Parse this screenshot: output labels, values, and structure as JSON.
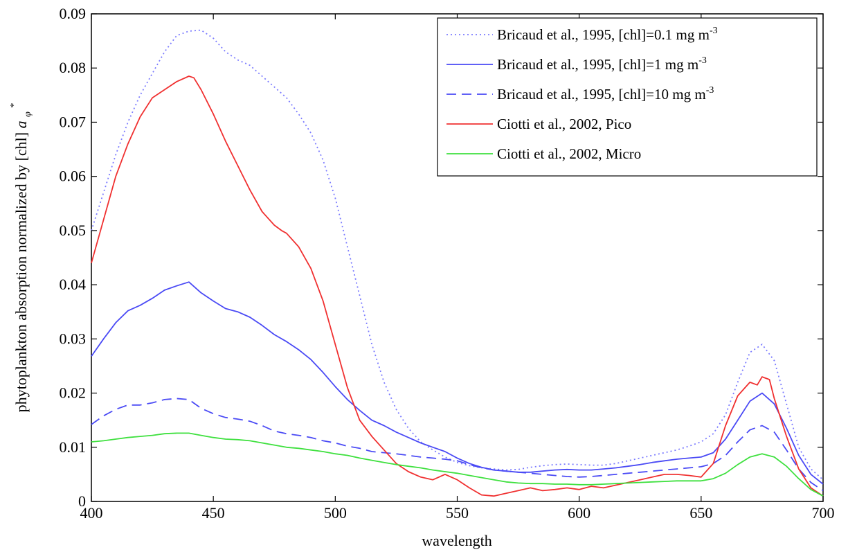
{
  "chart_data": {
    "type": "line",
    "xlabel": "wavelength",
    "ylabel": "phytoplankton absorption normalized by [chl]",
    "ylabel_symbol": "a",
    "ylabel_subscript": "φ",
    "ylabel_superscript": "*",
    "xlim": [
      400,
      700
    ],
    "ylim": [
      0,
      0.09
    ],
    "xticks": [
      400,
      450,
      500,
      550,
      600,
      650,
      700
    ],
    "yticks": [
      0,
      0.01,
      0.02,
      0.03,
      0.04,
      0.05,
      0.06,
      0.07,
      0.08,
      0.09
    ],
    "xtick_labels": [
      "400",
      "450",
      "500",
      "550",
      "600",
      "650",
      "700"
    ],
    "ytick_labels": [
      "0",
      "0.01",
      "0.02",
      "0.03",
      "0.04",
      "0.05",
      "0.06",
      "0.07",
      "0.08",
      "0.09"
    ],
    "grid": false,
    "legend_position": "top-right",
    "series": [
      {
        "name": "Bricaud et al., 1995, [chl]=0.1 mg m",
        "name_superscript": "-3",
        "color": "#7b7bff",
        "style": "dotted",
        "x": [
          400,
          405,
          410,
          415,
          420,
          425,
          430,
          435,
          440,
          445,
          450,
          455,
          460,
          465,
          470,
          475,
          480,
          485,
          490,
          495,
          500,
          505,
          510,
          515,
          520,
          525,
          530,
          535,
          540,
          545,
          550,
          555,
          560,
          565,
          570,
          575,
          580,
          585,
          590,
          595,
          600,
          605,
          610,
          615,
          620,
          625,
          630,
          635,
          640,
          645,
          650,
          655,
          660,
          665,
          670,
          675,
          680,
          685,
          690,
          695,
          700
        ],
        "y": [
          0.05,
          0.057,
          0.064,
          0.07,
          0.075,
          0.079,
          0.083,
          0.086,
          0.0868,
          0.087,
          0.0855,
          0.083,
          0.0815,
          0.0805,
          0.0785,
          0.0765,
          0.0745,
          0.0715,
          0.068,
          0.063,
          0.056,
          0.047,
          0.038,
          0.029,
          0.022,
          0.017,
          0.0135,
          0.011,
          0.0095,
          0.0082,
          0.0072,
          0.0066,
          0.0062,
          0.006,
          0.0058,
          0.0059,
          0.0063,
          0.0066,
          0.0068,
          0.0069,
          0.0068,
          0.0067,
          0.0067,
          0.007,
          0.0075,
          0.008,
          0.0085,
          0.009,
          0.0095,
          0.0102,
          0.011,
          0.0125,
          0.016,
          0.022,
          0.0275,
          0.029,
          0.026,
          0.018,
          0.01,
          0.006,
          0.004
        ]
      },
      {
        "name": "Bricaud et al., 1995, [chl]=1 mg m",
        "name_superscript": "-3",
        "color": "#4a4af5",
        "style": "solid",
        "x": [
          400,
          405,
          410,
          415,
          420,
          425,
          430,
          435,
          440,
          445,
          450,
          455,
          460,
          465,
          470,
          475,
          480,
          485,
          490,
          495,
          500,
          505,
          510,
          515,
          520,
          525,
          530,
          535,
          540,
          545,
          550,
          555,
          560,
          565,
          570,
          575,
          580,
          585,
          590,
          595,
          600,
          605,
          610,
          615,
          620,
          625,
          630,
          635,
          640,
          645,
          650,
          655,
          660,
          665,
          670,
          675,
          680,
          685,
          690,
          695,
          700
        ],
        "y": [
          0.0268,
          0.03,
          0.033,
          0.0352,
          0.0362,
          0.0375,
          0.039,
          0.0398,
          0.0405,
          0.0385,
          0.037,
          0.0356,
          0.035,
          0.034,
          0.0325,
          0.0308,
          0.0295,
          0.028,
          0.0262,
          0.0238,
          0.0212,
          0.0188,
          0.0168,
          0.015,
          0.014,
          0.0128,
          0.0118,
          0.0108,
          0.01,
          0.0092,
          0.008,
          0.007,
          0.0063,
          0.0058,
          0.0056,
          0.0054,
          0.0054,
          0.0056,
          0.0058,
          0.0059,
          0.0058,
          0.0058,
          0.006,
          0.0062,
          0.0065,
          0.0068,
          0.0072,
          0.0075,
          0.0078,
          0.008,
          0.0082,
          0.009,
          0.0115,
          0.015,
          0.0185,
          0.02,
          0.018,
          0.0135,
          0.0085,
          0.005,
          0.0032
        ]
      },
      {
        "name": "Bricaud et al., 1995, [chl]=10 mg m",
        "name_superscript": "-3",
        "color": "#4a4af5",
        "style": "dashed",
        "x": [
          400,
          405,
          410,
          415,
          420,
          425,
          430,
          435,
          440,
          445,
          450,
          455,
          460,
          465,
          470,
          475,
          480,
          485,
          490,
          495,
          500,
          505,
          510,
          515,
          520,
          525,
          530,
          535,
          540,
          545,
          550,
          555,
          560,
          565,
          570,
          575,
          580,
          585,
          590,
          595,
          600,
          605,
          610,
          615,
          620,
          625,
          630,
          635,
          640,
          645,
          650,
          655,
          660,
          665,
          670,
          675,
          680,
          685,
          690,
          695,
          700
        ],
        "y": [
          0.0142,
          0.0158,
          0.017,
          0.0178,
          0.0178,
          0.0182,
          0.0188,
          0.019,
          0.0188,
          0.0172,
          0.0162,
          0.0155,
          0.0152,
          0.0148,
          0.014,
          0.013,
          0.0125,
          0.0122,
          0.0118,
          0.0112,
          0.0108,
          0.0102,
          0.0098,
          0.0092,
          0.009,
          0.0088,
          0.0085,
          0.0082,
          0.008,
          0.0078,
          0.0075,
          0.0068,
          0.0062,
          0.0058,
          0.0056,
          0.0054,
          0.0052,
          0.005,
          0.0048,
          0.0046,
          0.0045,
          0.0046,
          0.0048,
          0.005,
          0.0052,
          0.0054,
          0.0056,
          0.0058,
          0.006,
          0.0062,
          0.0064,
          0.007,
          0.0085,
          0.011,
          0.0132,
          0.014,
          0.0128,
          0.0095,
          0.006,
          0.0035,
          0.002
        ]
      },
      {
        "name": "Ciotti et al., 2002, Pico",
        "color": "#f03030",
        "style": "solid",
        "x": [
          400,
          405,
          410,
          415,
          420,
          425,
          430,
          435,
          440,
          442,
          445,
          450,
          455,
          460,
          465,
          470,
          475,
          478,
          480,
          485,
          490,
          495,
          500,
          505,
          510,
          515,
          520,
          525,
          530,
          535,
          540,
          545,
          550,
          555,
          560,
          565,
          570,
          575,
          580,
          585,
          590,
          595,
          600,
          605,
          610,
          615,
          620,
          625,
          630,
          635,
          640,
          645,
          650,
          655,
          660,
          665,
          670,
          673,
          675,
          678,
          680,
          685,
          690,
          695,
          700
        ],
        "y": [
          0.044,
          0.052,
          0.06,
          0.066,
          0.071,
          0.0745,
          0.076,
          0.0775,
          0.0785,
          0.0782,
          0.076,
          0.0715,
          0.0665,
          0.062,
          0.0575,
          0.0535,
          0.051,
          0.05,
          0.0495,
          0.047,
          0.043,
          0.037,
          0.029,
          0.021,
          0.015,
          0.012,
          0.0095,
          0.007,
          0.0055,
          0.0045,
          0.004,
          0.005,
          0.004,
          0.0025,
          0.0012,
          0.001,
          0.0015,
          0.002,
          0.0025,
          0.002,
          0.0022,
          0.0025,
          0.0022,
          0.0028,
          0.0025,
          0.003,
          0.0035,
          0.004,
          0.0045,
          0.005,
          0.005,
          0.0048,
          0.0045,
          0.007,
          0.014,
          0.0195,
          0.022,
          0.0215,
          0.023,
          0.0225,
          0.019,
          0.012,
          0.006,
          0.0025,
          0.001
        ]
      },
      {
        "name": "Ciotti et al., 2002, Micro",
        "color": "#3ee03e",
        "style": "solid",
        "x": [
          400,
          405,
          410,
          415,
          420,
          425,
          430,
          435,
          440,
          445,
          450,
          455,
          460,
          465,
          470,
          475,
          480,
          485,
          490,
          495,
          500,
          505,
          510,
          515,
          520,
          525,
          530,
          535,
          540,
          545,
          550,
          555,
          560,
          565,
          570,
          575,
          580,
          585,
          590,
          595,
          600,
          605,
          610,
          615,
          620,
          625,
          630,
          635,
          640,
          645,
          650,
          655,
          660,
          665,
          670,
          675,
          680,
          685,
          690,
          695,
          700
        ],
        "y": [
          0.011,
          0.0112,
          0.0115,
          0.0118,
          0.012,
          0.0122,
          0.0125,
          0.0126,
          0.0126,
          0.0122,
          0.0118,
          0.0115,
          0.0114,
          0.0112,
          0.0108,
          0.0104,
          0.01,
          0.0098,
          0.0095,
          0.0092,
          0.0088,
          0.0085,
          0.008,
          0.0076,
          0.0072,
          0.0068,
          0.0065,
          0.0062,
          0.0058,
          0.0055,
          0.0052,
          0.0048,
          0.0044,
          0.004,
          0.0036,
          0.0034,
          0.0033,
          0.0033,
          0.0032,
          0.0032,
          0.0031,
          0.0031,
          0.0032,
          0.0033,
          0.0034,
          0.0035,
          0.0036,
          0.0037,
          0.0038,
          0.0038,
          0.0038,
          0.0042,
          0.0052,
          0.0068,
          0.0082,
          0.0088,
          0.0082,
          0.0065,
          0.0042,
          0.0022,
          0.001
        ]
      }
    ]
  }
}
